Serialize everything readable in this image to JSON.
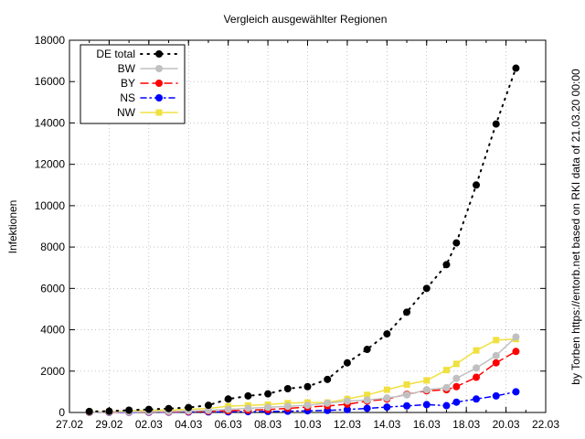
{
  "chart_data": {
    "type": "line",
    "title": "Vergleich ausgewählter Regionen",
    "ylabel": "Infektionen",
    "side_note": "by Torben https://entorb.net based on RKI data of 21.03.20 00:00",
    "ylim": [
      0,
      18000
    ],
    "xlim": [
      "2020-02-27",
      "2020-03-22"
    ],
    "y_ticks": [
      0,
      2000,
      4000,
      6000,
      8000,
      10000,
      12000,
      14000,
      16000,
      18000
    ],
    "x_ticks": [
      {
        "date": "2020-02-27",
        "label": "27.02"
      },
      {
        "date": "2020-02-29",
        "label": "29.02"
      },
      {
        "date": "2020-03-02",
        "label": "02.03"
      },
      {
        "date": "2020-03-04",
        "label": "04.03"
      },
      {
        "date": "2020-03-06",
        "label": "06.03"
      },
      {
        "date": "2020-03-08",
        "label": "08.03"
      },
      {
        "date": "2020-03-10",
        "label": "10.03"
      },
      {
        "date": "2020-03-12",
        "label": "12.03"
      },
      {
        "date": "2020-03-14",
        "label": "14.03"
      },
      {
        "date": "2020-03-16",
        "label": "16.03"
      },
      {
        "date": "2020-03-18",
        "label": "18.03"
      },
      {
        "date": "2020-03-20",
        "label": "20.03"
      },
      {
        "date": "2020-03-22",
        "label": "22.03"
      }
    ],
    "grid": true,
    "legend_position": "top-left",
    "series": [
      {
        "name": "DE total",
        "color": "#000000",
        "line_style": "dotted",
        "marker": "circle",
        "points": [
          [
            "2020-02-28",
            50
          ],
          [
            "2020-02-29",
            60
          ],
          [
            "2020-03-01",
            110
          ],
          [
            "2020-03-02",
            150
          ],
          [
            "2020-03-03",
            190
          ],
          [
            "2020-03-04",
            240
          ],
          [
            "2020-03-05",
            350
          ],
          [
            "2020-03-06",
            650
          ],
          [
            "2020-03-07",
            800
          ],
          [
            "2020-03-08",
            900
          ],
          [
            "2020-03-09",
            1150
          ],
          [
            "2020-03-10",
            1250
          ],
          [
            "2020-03-11",
            1600
          ],
          [
            "2020-03-12",
            2400
          ],
          [
            "2020-03-13",
            3050
          ],
          [
            "2020-03-14",
            3800
          ],
          [
            "2020-03-15",
            4850
          ],
          [
            "2020-03-16",
            6000
          ],
          [
            "2020-03-17",
            7150
          ],
          [
            "2020-03-17T12:00",
            8200
          ],
          [
            "2020-03-18T12:00",
            11000
          ],
          [
            "2020-03-19T12:00",
            13950
          ],
          [
            "2020-03-20T12:00",
            16650
          ]
        ]
      },
      {
        "name": "BW",
        "color": "#c0c0c0",
        "line_style": "solid",
        "marker": "circle",
        "points": [
          [
            "2020-02-28",
            15
          ],
          [
            "2020-02-29",
            20
          ],
          [
            "2020-03-01",
            30
          ],
          [
            "2020-03-02",
            40
          ],
          [
            "2020-03-03",
            50
          ],
          [
            "2020-03-04",
            70
          ],
          [
            "2020-03-05",
            100
          ],
          [
            "2020-03-06",
            150
          ],
          [
            "2020-03-07",
            200
          ],
          [
            "2020-03-08",
            250
          ],
          [
            "2020-03-09",
            300
          ],
          [
            "2020-03-10",
            350
          ],
          [
            "2020-03-11",
            450
          ],
          [
            "2020-03-12",
            550
          ],
          [
            "2020-03-13",
            600
          ],
          [
            "2020-03-14",
            700
          ],
          [
            "2020-03-15",
            850
          ],
          [
            "2020-03-16",
            1100
          ],
          [
            "2020-03-17",
            1200
          ],
          [
            "2020-03-17T12:00",
            1650
          ],
          [
            "2020-03-18T12:00",
            2150
          ],
          [
            "2020-03-19T12:00",
            2750
          ],
          [
            "2020-03-20T12:00",
            3650
          ]
        ]
      },
      {
        "name": "BY",
        "color": "#ff0000",
        "line_style": "dashed",
        "marker": "circle",
        "points": [
          [
            "2020-02-28",
            10
          ],
          [
            "2020-02-29",
            15
          ],
          [
            "2020-03-01",
            20
          ],
          [
            "2020-03-02",
            25
          ],
          [
            "2020-03-03",
            30
          ],
          [
            "2020-03-04",
            40
          ],
          [
            "2020-03-05",
            60
          ],
          [
            "2020-03-06",
            80
          ],
          [
            "2020-03-07",
            110
          ],
          [
            "2020-03-08",
            140
          ],
          [
            "2020-03-09",
            200
          ],
          [
            "2020-03-10",
            260
          ],
          [
            "2020-03-11",
            320
          ],
          [
            "2020-03-12",
            400
          ],
          [
            "2020-03-13",
            550
          ],
          [
            "2020-03-14",
            650
          ],
          [
            "2020-03-15",
            880
          ],
          [
            "2020-03-16",
            1050
          ],
          [
            "2020-03-17",
            1100
          ],
          [
            "2020-03-17T12:00",
            1250
          ],
          [
            "2020-03-18T12:00",
            1700
          ],
          [
            "2020-03-19T12:00",
            2400
          ],
          [
            "2020-03-20T12:00",
            2950
          ]
        ]
      },
      {
        "name": "NS",
        "color": "#0000ff",
        "line_style": "dashdot",
        "marker": "circle",
        "points": [
          [
            "2020-02-28",
            5
          ],
          [
            "2020-02-29",
            5
          ],
          [
            "2020-03-01",
            10
          ],
          [
            "2020-03-02",
            10
          ],
          [
            "2020-03-03",
            15
          ],
          [
            "2020-03-04",
            20
          ],
          [
            "2020-03-05",
            25
          ],
          [
            "2020-03-06",
            30
          ],
          [
            "2020-03-07",
            40
          ],
          [
            "2020-03-08",
            50
          ],
          [
            "2020-03-09",
            60
          ],
          [
            "2020-03-10",
            80
          ],
          [
            "2020-03-11",
            100
          ],
          [
            "2020-03-12",
            140
          ],
          [
            "2020-03-13",
            200
          ],
          [
            "2020-03-14",
            260
          ],
          [
            "2020-03-15",
            320
          ],
          [
            "2020-03-16",
            380
          ],
          [
            "2020-03-17",
            330
          ],
          [
            "2020-03-17T12:00",
            500
          ],
          [
            "2020-03-18T12:00",
            650
          ],
          [
            "2020-03-19T12:00",
            800
          ],
          [
            "2020-03-20T12:00",
            1000
          ]
        ]
      },
      {
        "name": "NW",
        "color": "#f0e040",
        "line_style": "solid",
        "marker": "square",
        "points": [
          [
            "2020-02-28",
            20
          ],
          [
            "2020-02-29",
            40
          ],
          [
            "2020-03-01",
            80
          ],
          [
            "2020-03-02",
            100
          ],
          [
            "2020-03-03",
            120
          ],
          [
            "2020-03-04",
            150
          ],
          [
            "2020-03-05",
            200
          ],
          [
            "2020-03-06",
            300
          ],
          [
            "2020-03-07",
            340
          ],
          [
            "2020-03-08",
            380
          ],
          [
            "2020-03-09",
            450
          ],
          [
            "2020-03-10",
            480
          ],
          [
            "2020-03-11",
            480
          ],
          [
            "2020-03-12",
            650
          ],
          [
            "2020-03-13",
            850
          ],
          [
            "2020-03-14",
            1100
          ],
          [
            "2020-03-15",
            1350
          ],
          [
            "2020-03-16",
            1550
          ],
          [
            "2020-03-17",
            2050
          ],
          [
            "2020-03-17T12:00",
            2350
          ],
          [
            "2020-03-18T12:00",
            3000
          ],
          [
            "2020-03-19T12:00",
            3500
          ],
          [
            "2020-03-20T12:00",
            3550
          ]
        ]
      }
    ]
  }
}
